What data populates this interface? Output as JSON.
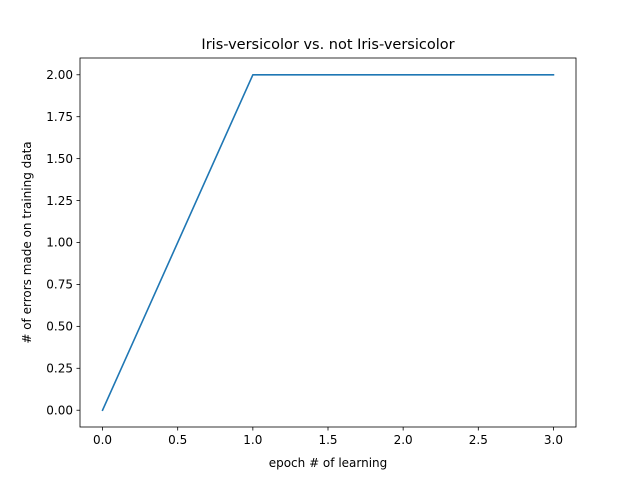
{
  "chart_data": {
    "type": "line",
    "title": "Iris-versicolor vs. not Iris-versicolor",
    "xlabel": "epoch # of learning",
    "ylabel": "# of errors made on training data",
    "xlim": [
      -0.15,
      3.15
    ],
    "ylim": [
      -0.1,
      2.1
    ],
    "xticks": [
      0.0,
      0.5,
      1.0,
      1.5,
      2.0,
      2.5,
      3.0
    ],
    "xtick_labels": [
      "0.0",
      "0.5",
      "1.0",
      "1.5",
      "2.0",
      "2.5",
      "3.0"
    ],
    "yticks": [
      0.0,
      0.25,
      0.5,
      0.75,
      1.0,
      1.25,
      1.5,
      1.75,
      2.0
    ],
    "ytick_labels": [
      "0.00",
      "0.25",
      "0.50",
      "0.75",
      "1.00",
      "1.25",
      "1.50",
      "1.75",
      "2.00"
    ],
    "grid": false,
    "legend": "none",
    "series": [
      {
        "color": "#1f77b4",
        "x": [
          0,
          1,
          2,
          3
        ],
        "y": [
          0,
          2,
          2,
          2
        ]
      }
    ]
  }
}
